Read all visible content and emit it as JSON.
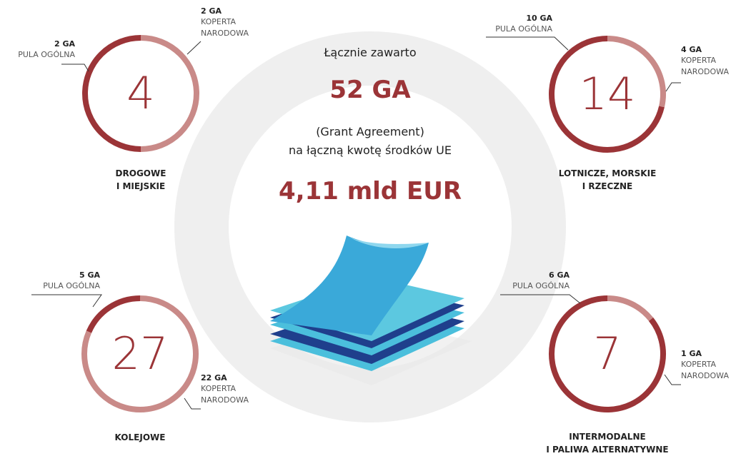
{
  "summary": {
    "intro": "Łącznie zawarto",
    "count": "52 GA",
    "note": "(Grant Agreement)\nna łączną kwotę środków UE",
    "amount": "4,11 mld EUR"
  },
  "chart_data": [
    {
      "type": "donut",
      "title": "DROGOWE\nI MIEJSKIE",
      "total": 4,
      "categories": [
        "PULA OGÓLNA",
        "KOPERTA\nNARODOWA"
      ],
      "values": [
        2,
        2
      ],
      "value_labels": [
        "2 GA",
        "2 GA"
      ],
      "colors": [
        "#9b3437",
        "#c98a88"
      ]
    },
    {
      "type": "donut",
      "title": "LOTNICZE, MORSKIE\nI RZECZNE",
      "total": 14,
      "categories": [
        "PULA OGÓLNA",
        "KOPERTA\nNARODOWA"
      ],
      "values": [
        10,
        4
      ],
      "value_labels": [
        "10 GA",
        "4 GA"
      ],
      "colors": [
        "#9b3437",
        "#c98a88"
      ]
    },
    {
      "type": "donut",
      "title": "KOLEJOWE",
      "total": 27,
      "categories": [
        "PULA OGÓLNA",
        "KOPERTA\nNARODOWA"
      ],
      "values": [
        5,
        22
      ],
      "value_labels": [
        "5 GA",
        "22 GA"
      ],
      "colors": [
        "#9b3437",
        "#c98a88"
      ]
    },
    {
      "type": "donut",
      "title": "INTERMODALNE\nI PALIWA ALTERNATYWNE",
      "total": 7,
      "categories": [
        "PULA OGÓLNA",
        "KOPERTA\nNARODOWA"
      ],
      "values": [
        6,
        1
      ],
      "value_labels": [
        "6 GA",
        "1 GA"
      ],
      "colors": [
        "#9b3437",
        "#c98a88"
      ]
    }
  ]
}
